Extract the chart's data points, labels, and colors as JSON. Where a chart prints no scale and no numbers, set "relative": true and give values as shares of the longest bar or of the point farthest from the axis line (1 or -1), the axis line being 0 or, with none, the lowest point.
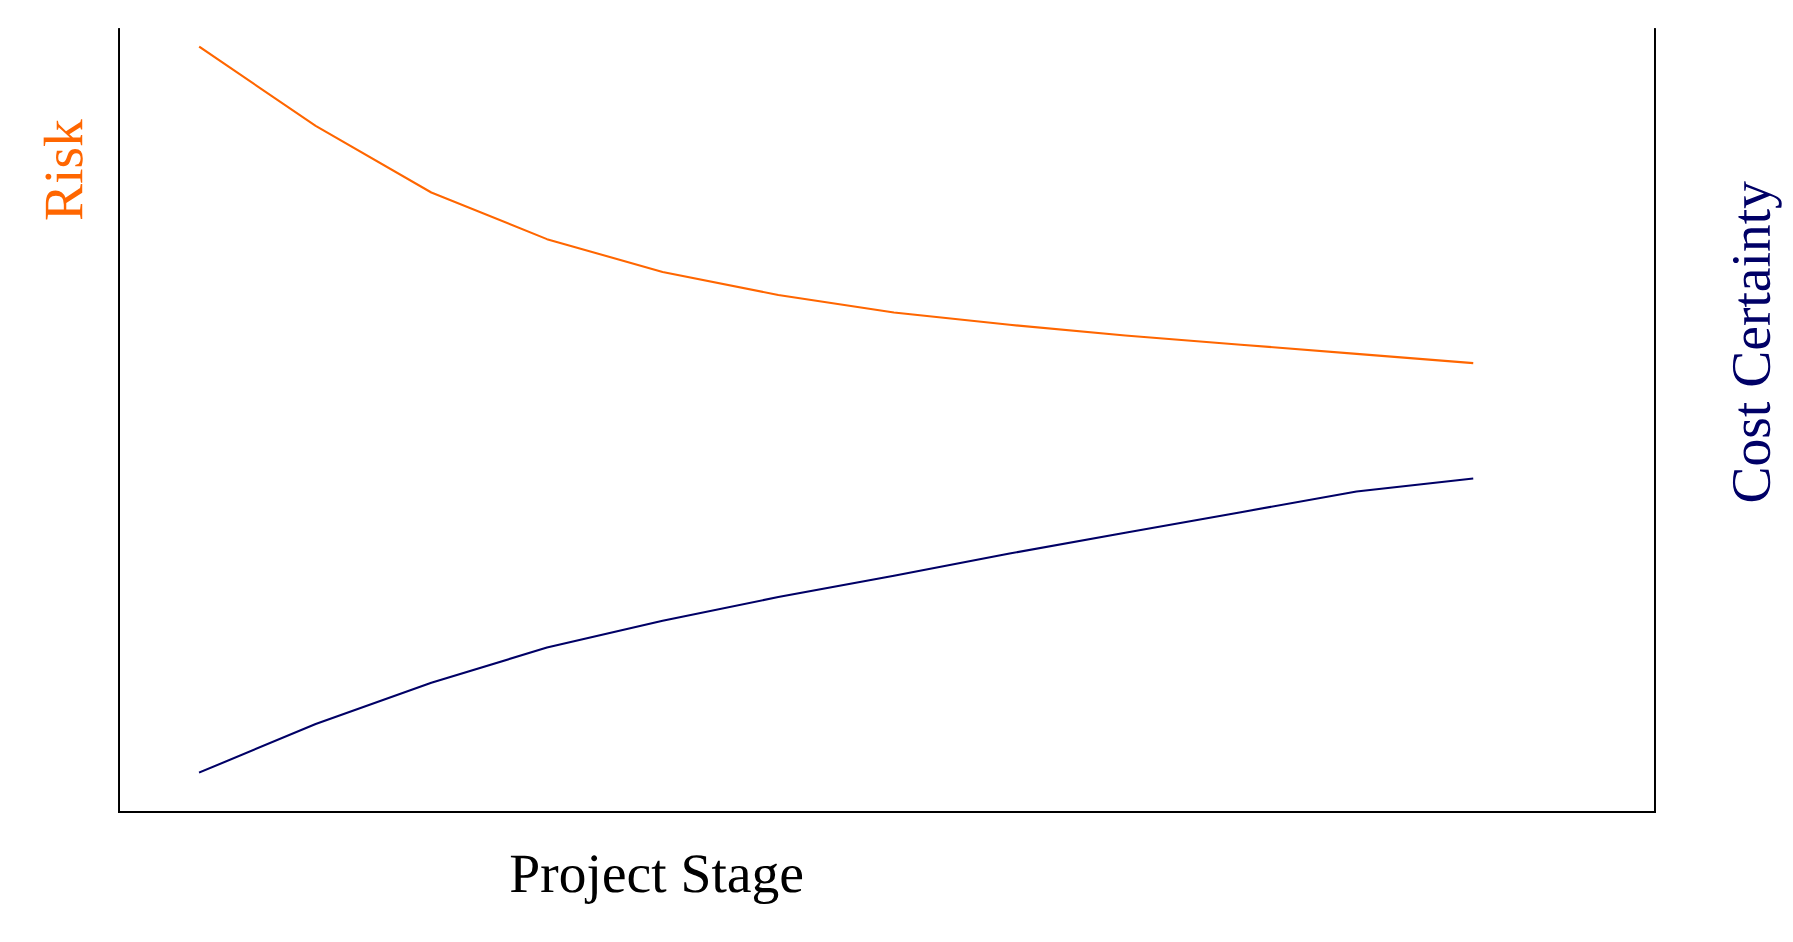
{
  "chart_data": {
    "type": "line",
    "relative": true,
    "xlabel": "Project Stage",
    "ylabel": "Risk",
    "y2label": "Cost Certainty",
    "categories": [
      null,
      null,
      null,
      null,
      null,
      null,
      null,
      null,
      null,
      null,
      null,
      null
    ],
    "series": [
      {
        "color": "#ff6600",
        "values": [
          1.0,
          0.897,
          0.81,
          0.749,
          0.706,
          0.676,
          0.653,
          0.637,
          0.623,
          0.611,
          0.599,
          0.587
        ]
      },
      {
        "color": "#000066",
        "values": [
          0.052,
          0.115,
          0.169,
          0.215,
          0.25,
          0.281,
          0.309,
          0.338,
          0.365,
          0.392,
          0.419,
          0.436
        ]
      }
    ],
    "legend": false,
    "marker": "none",
    "line_style": "solid"
  }
}
